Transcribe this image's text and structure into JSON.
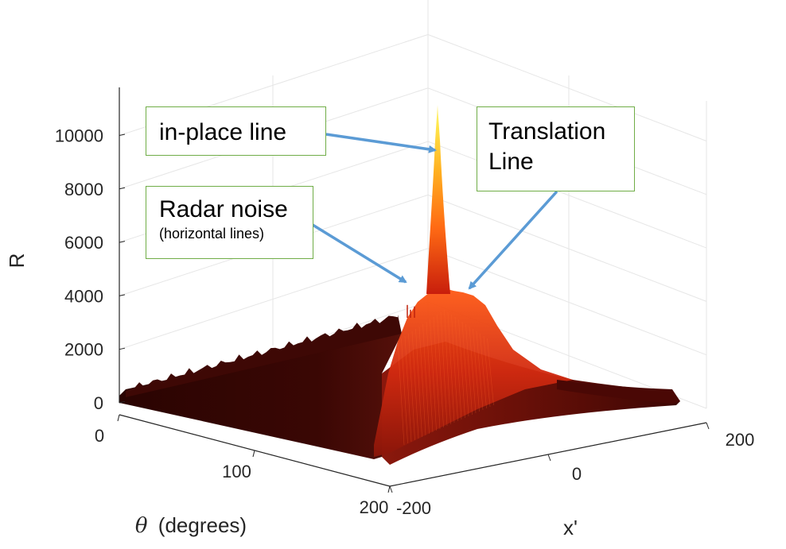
{
  "chart_data": {
    "type": "surface",
    "zlabel": "R",
    "xlabel": "x'",
    "ylabel_var": "θ",
    "ylabel_unit": "(degrees)",
    "zlim": [
      0,
      11500
    ],
    "z_ticks": [
      0,
      2000,
      4000,
      6000,
      8000,
      10000
    ],
    "theta_ticks": [
      0,
      100,
      200
    ],
    "x_ticks": [
      -200,
      0,
      200
    ],
    "theta_range": [
      0,
      200
    ],
    "x_range": [
      -200,
      200
    ],
    "peaks": [
      {
        "feature": "in-place line",
        "x": 0,
        "theta": 180,
        "R": 11000
      },
      {
        "feature": "translation line",
        "x": 0,
        "theta": 180,
        "R": 4300
      },
      {
        "feature": "radar noise",
        "x": -40,
        "theta": 180,
        "R": 4700
      }
    ],
    "baseline_R": 300,
    "colormap": [
      "#1a0000",
      "#5c0a05",
      "#b01d0e",
      "#e83a14",
      "#ff7a1a",
      "#ffcc33",
      "#fff27a"
    ]
  },
  "annotations": {
    "in_place": {
      "label": "in-place line"
    },
    "translation": {
      "label": "Translation\nLine"
    },
    "radar_noise": {
      "label": "Radar noise",
      "sublabel": "(horizontal lines)"
    }
  },
  "colors": {
    "callout_border": "#70ad47",
    "arrow": "#5b9bd5",
    "grid": "#e6e6e6",
    "axis": "#262626"
  }
}
